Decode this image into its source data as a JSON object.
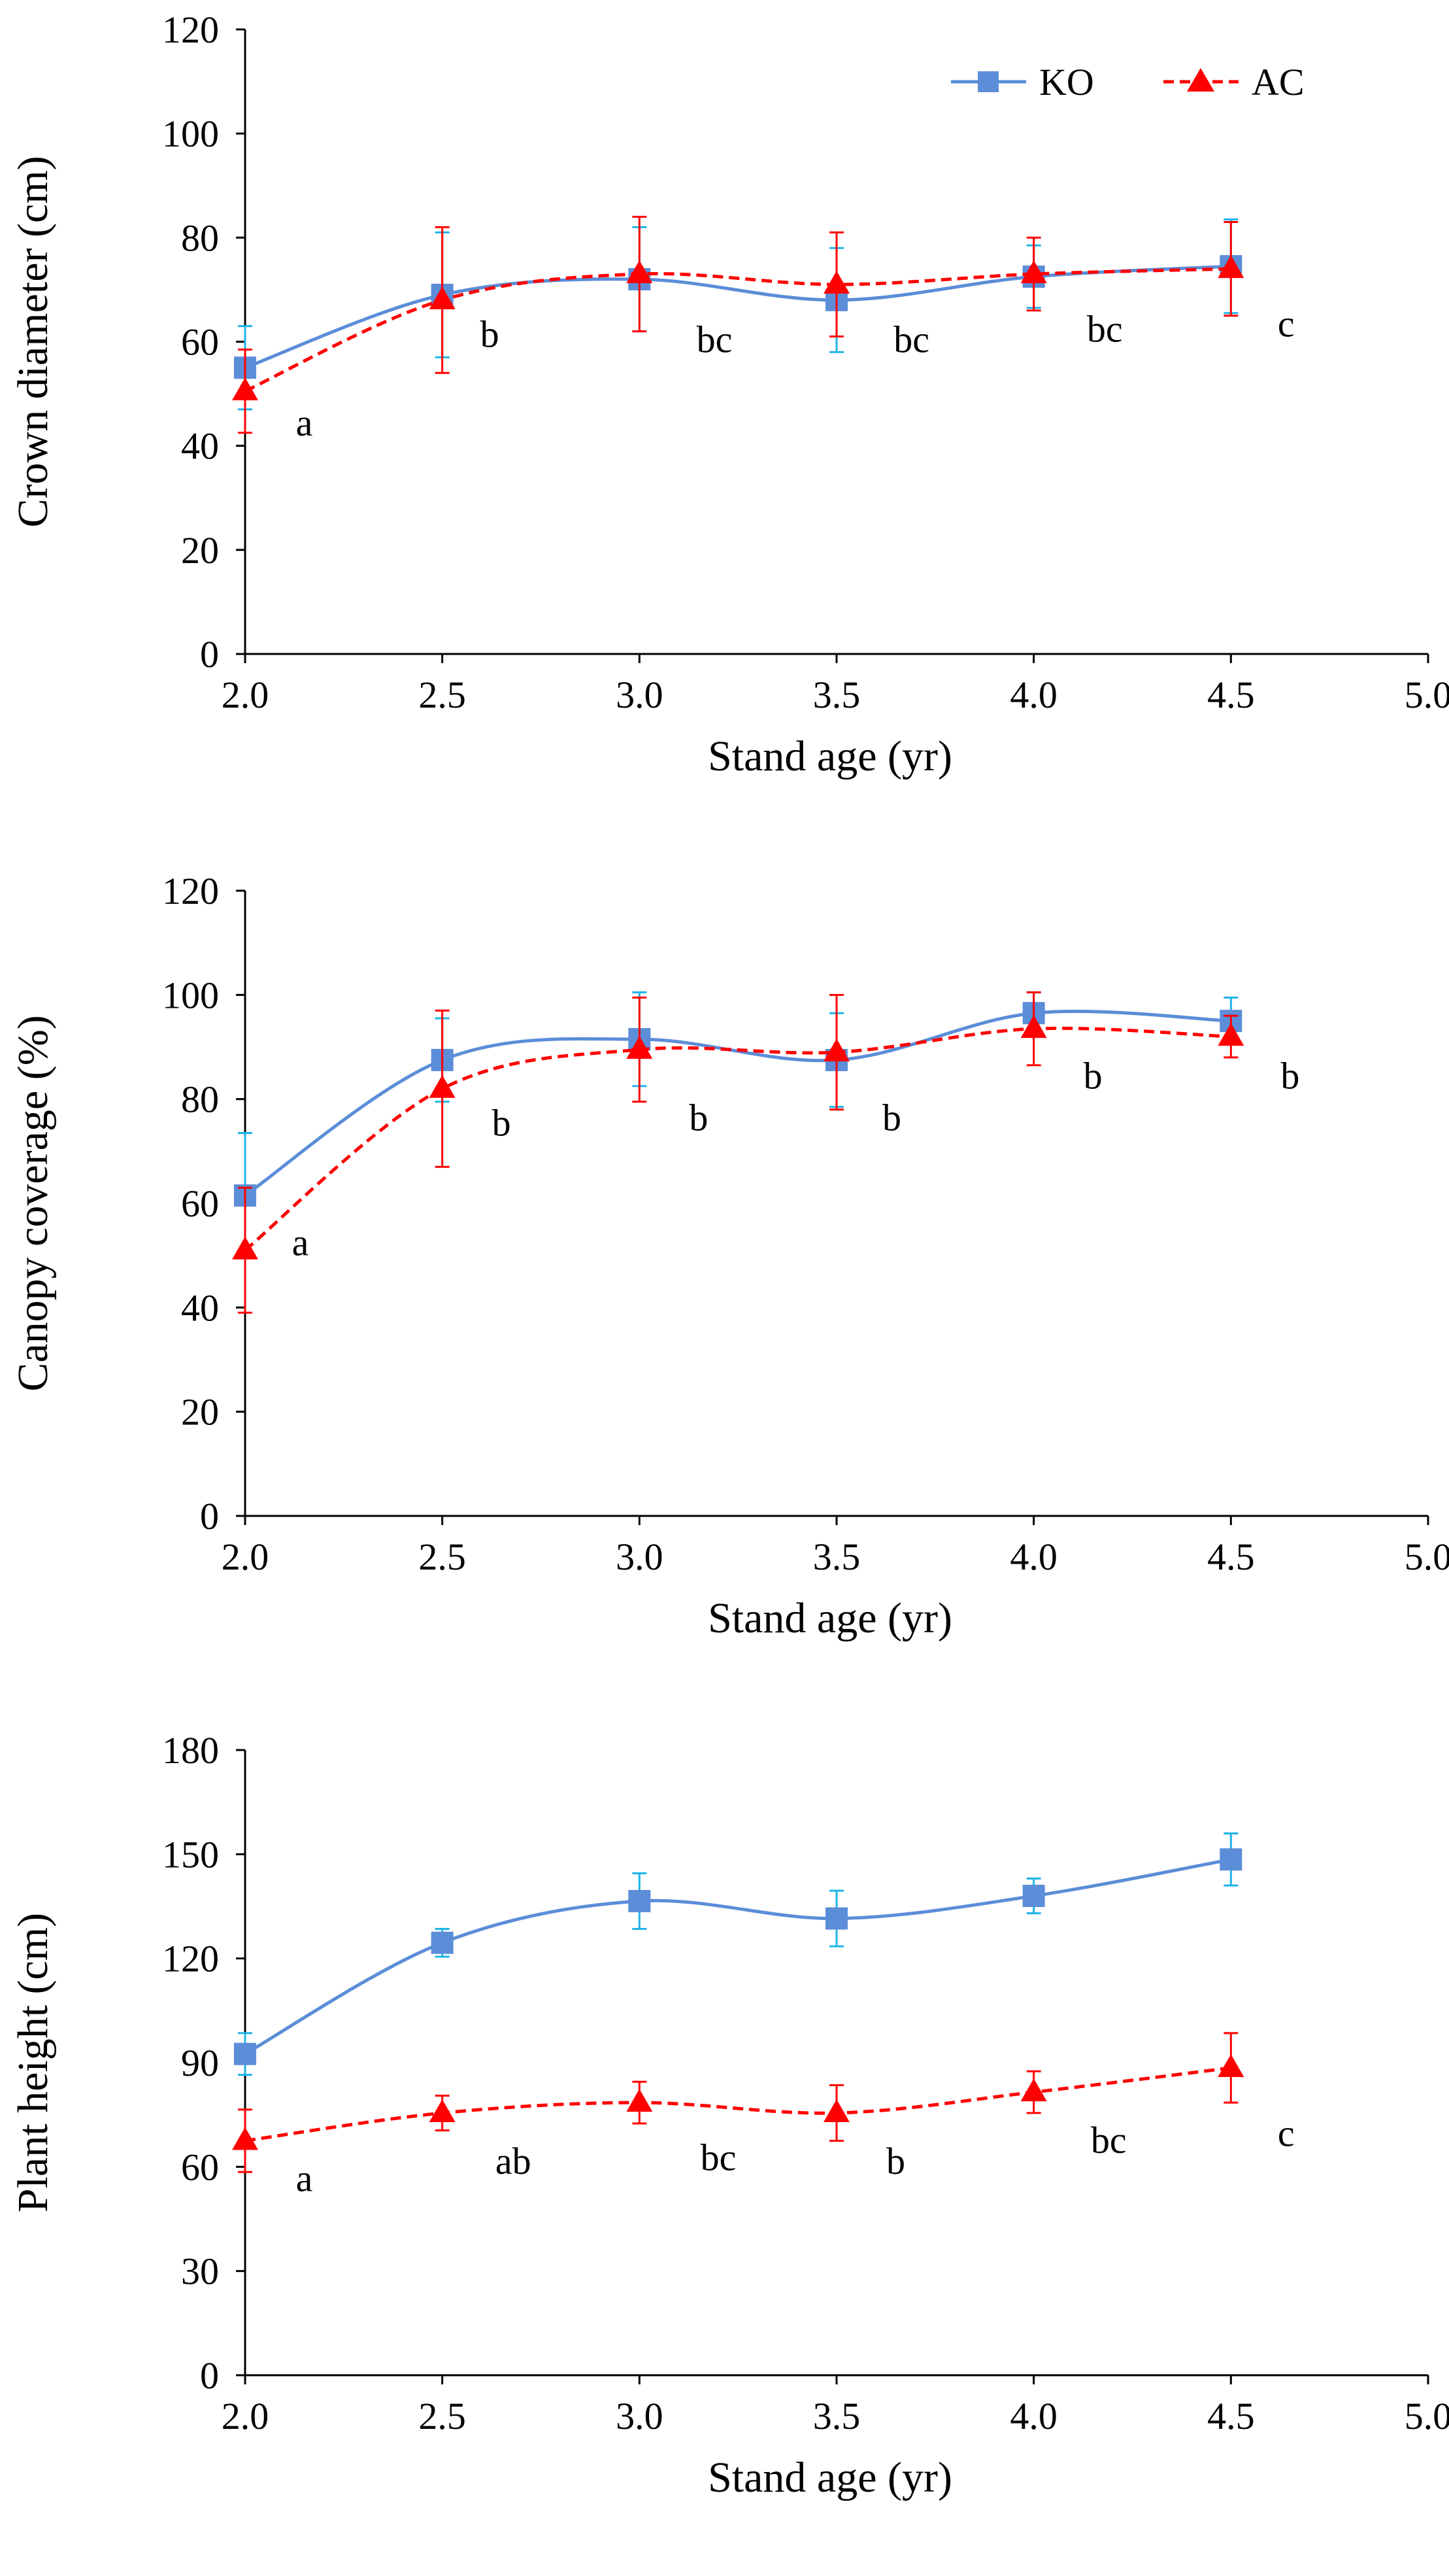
{
  "colors": {
    "ko": "#5B8DD8",
    "ko_err": "#1EB4E8",
    "ac": "#FF0000",
    "axis": "#000000"
  },
  "legend": {
    "ko": "KO",
    "ac": "AC"
  },
  "chart_data": [
    {
      "type": "line",
      "id": "crown",
      "title": "",
      "xlabel": "Stand age (yr)",
      "ylabel": "Crown diameter (cm)",
      "xlim": [
        2.0,
        5.0
      ],
      "ylim": [
        0,
        120
      ],
      "x_ticks": [
        "2.0",
        "2.5",
        "3.0",
        "3.5",
        "4.0",
        "4.5",
        "5.0"
      ],
      "y_ticks": [
        "0",
        "20",
        "40",
        "60",
        "80",
        "100",
        "120"
      ],
      "x": [
        2.0,
        2.5,
        3.0,
        3.5,
        4.0,
        4.5
      ],
      "series": [
        {
          "name": "KO",
          "values": [
            55,
            69,
            72,
            68,
            72.5,
            74.5
          ],
          "errors": [
            8,
            12,
            10,
            10,
            6,
            9
          ]
        },
        {
          "name": "AC",
          "values": [
            50.5,
            68,
            73,
            71,
            73,
            74
          ],
          "errors": [
            8,
            14,
            11,
            10,
            7,
            9
          ]
        }
      ],
      "annotations": [
        {
          "x": 2.15,
          "y": 42,
          "text": "a"
        },
        {
          "x": 2.62,
          "y": 59,
          "text": "b"
        },
        {
          "x": 3.19,
          "y": 58,
          "text": "bc"
        },
        {
          "x": 3.69,
          "y": 58,
          "text": "bc"
        },
        {
          "x": 4.18,
          "y": 60,
          "text": "bc"
        },
        {
          "x": 4.64,
          "y": 61,
          "text": "c"
        }
      ]
    },
    {
      "type": "line",
      "id": "canopy",
      "title": "",
      "xlabel": "Stand age (yr)",
      "ylabel": "Canopy coverage (%)",
      "xlim": [
        2.0,
        5.0
      ],
      "ylim": [
        0,
        120
      ],
      "x_ticks": [
        "2.0",
        "2.5",
        "3.0",
        "3.5",
        "4.0",
        "4.5",
        "5.0"
      ],
      "y_ticks": [
        "0",
        "20",
        "40",
        "60",
        "80",
        "100",
        "120"
      ],
      "x": [
        2.0,
        2.5,
        3.0,
        3.5,
        4.0,
        4.5
      ],
      "series": [
        {
          "name": "KO",
          "values": [
            61.5,
            87.5,
            91.5,
            87.5,
            96.5,
            95
          ],
          "errors": [
            12,
            8,
            9,
            9,
            4,
            4.5
          ]
        },
        {
          "name": "AC",
          "values": [
            51,
            82,
            89.5,
            89,
            93.5,
            92
          ],
          "errors": [
            12,
            15,
            10,
            11,
            7,
            4
          ]
        }
      ],
      "annotations": [
        {
          "x": 2.14,
          "y": 50,
          "text": "a"
        },
        {
          "x": 2.65,
          "y": 73,
          "text": "b"
        },
        {
          "x": 3.15,
          "y": 74,
          "text": "b"
        },
        {
          "x": 3.64,
          "y": 74,
          "text": "b"
        },
        {
          "x": 4.15,
          "y": 82,
          "text": "b"
        },
        {
          "x": 4.65,
          "y": 82,
          "text": "b"
        }
      ]
    },
    {
      "type": "line",
      "id": "height",
      "title": "",
      "xlabel": "Stand age (yr)",
      "ylabel": "Plant height (cm)",
      "xlim": [
        2.0,
        5.0
      ],
      "ylim": [
        0,
        180
      ],
      "x_ticks": [
        "2.0",
        "2.5",
        "3.0",
        "3.5",
        "4.0",
        "4.5",
        "5.0"
      ],
      "y_ticks": [
        "0",
        "30",
        "60",
        "90",
        "120",
        "150",
        "180"
      ],
      "x": [
        2.0,
        2.5,
        3.0,
        3.5,
        4.0,
        4.5
      ],
      "series": [
        {
          "name": "KO",
          "values": [
            92.5,
            124.5,
            136.5,
            131.5,
            138,
            148.5
          ],
          "errors": [
            6,
            4,
            8,
            8,
            5,
            7.5
          ]
        },
        {
          "name": "AC",
          "values": [
            67.5,
            75.5,
            78.5,
            75.5,
            81.5,
            88.5
          ],
          "errors": [
            9,
            5,
            6,
            8,
            6,
            10
          ]
        }
      ],
      "annotations": [
        {
          "x": 2.15,
          "y": 53,
          "text": "a"
        },
        {
          "x": 2.68,
          "y": 58,
          "text": "ab"
        },
        {
          "x": 3.2,
          "y": 59,
          "text": "bc"
        },
        {
          "x": 3.65,
          "y": 58,
          "text": "b"
        },
        {
          "x": 4.19,
          "y": 64,
          "text": "bc"
        },
        {
          "x": 4.64,
          "y": 66,
          "text": "c"
        }
      ]
    }
  ]
}
